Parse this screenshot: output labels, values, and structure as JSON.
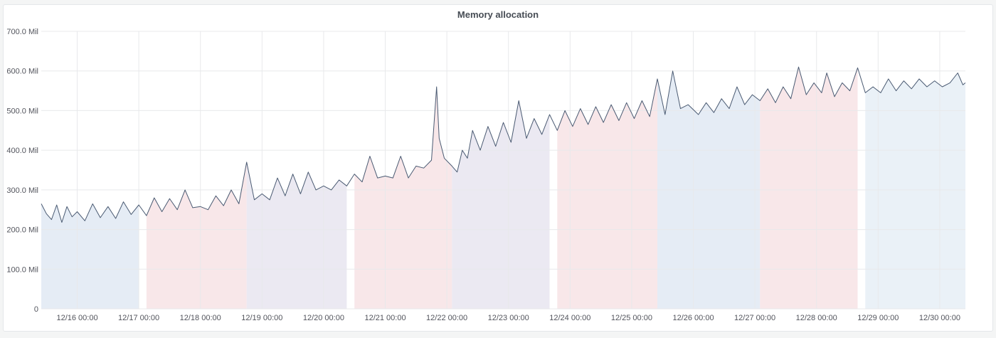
{
  "panel": {
    "title": "Memory allocation"
  },
  "chart_data": {
    "type": "line",
    "title": "Memory allocation",
    "xlabel": "",
    "ylabel": "",
    "y_unit": "Mil",
    "ylim": [
      0,
      700
    ],
    "y_ticks": [
      0,
      100,
      200,
      300,
      400,
      500,
      600,
      700
    ],
    "y_tick_labels": [
      "0",
      "100.0 Mil",
      "200.0 Mil",
      "300.0 Mil",
      "400.0 Mil",
      "500.0 Mil",
      "600.0 Mil",
      "700.0 Mil"
    ],
    "x_range": [
      "12/15 10:00",
      "12/30 10:00"
    ],
    "x_ticks": [
      "12/16 00:00",
      "12/17 00:00",
      "12/18 00:00",
      "12/19 00:00",
      "12/20 00:00",
      "12/21 00:00",
      "12/22 00:00",
      "12/23 00:00",
      "12/24 00:00",
      "12/25 00:00",
      "12/26 00:00",
      "12/27 00:00",
      "12/28 00:00",
      "12/29 00:00",
      "12/30 00:00"
    ],
    "grid": true,
    "legend": "none",
    "colors": {
      "line": "#4a5a72",
      "fill_blue": "#e5ecf5",
      "fill_pink": "#f8e7e9",
      "fill_lavender": "#ebe9f2",
      "fill_lightblue": "#eaf1f7",
      "grid": "#e8e9eb"
    },
    "band_colors": [
      "fill_blue",
      "fill_pink",
      "fill_lavender",
      "fill_pink",
      "fill_lavender",
      "fill_pink",
      "fill_blue",
      "fill_pink",
      "fill_lightblue"
    ],
    "series": [
      {
        "points": [
          [
            "12/15 10:00",
            265
          ],
          [
            "12/15 12:00",
            240
          ],
          [
            "12/15 14:00",
            225
          ],
          [
            "12/15 16:00",
            262
          ],
          [
            "12/15 18:00",
            218
          ],
          [
            "12/15 20:00",
            258
          ],
          [
            "12/15 22:00",
            232
          ],
          [
            "12/16 00:00",
            245
          ],
          [
            "12/16 03:00",
            222
          ],
          [
            "12/16 06:00",
            265
          ],
          [
            "12/16 09:00",
            230
          ],
          [
            "12/16 12:00",
            258
          ],
          [
            "12/16 15:00",
            228
          ],
          [
            "12/16 18:00",
            270
          ],
          [
            "12/16 21:00",
            238
          ],
          [
            "12/17 00:00",
            262
          ],
          [
            "12/17 03:00",
            235
          ],
          [
            "12/17 06:00",
            280
          ],
          [
            "12/17 09:00",
            245
          ],
          [
            "12/17 12:00",
            278
          ],
          [
            "12/17 15:00",
            250
          ],
          [
            "12/17 18:00",
            300
          ],
          [
            "12/17 21:00",
            255
          ],
          [
            "12/18 00:00",
            258
          ],
          [
            "12/18 03:00",
            250
          ],
          [
            "12/18 06:00",
            285
          ],
          [
            "12/18 09:00",
            260
          ],
          [
            "12/18 12:00",
            300
          ],
          [
            "12/18 15:00",
            265
          ],
          [
            "12/18 18:00",
            370
          ],
          [
            "12/18 21:00",
            275
          ],
          [
            "12/19 00:00",
            290
          ],
          [
            "12/19 03:00",
            275
          ],
          [
            "12/19 06:00",
            330
          ],
          [
            "12/19 09:00",
            285
          ],
          [
            "12/19 12:00",
            340
          ],
          [
            "12/19 15:00",
            290
          ],
          [
            "12/19 18:00",
            345
          ],
          [
            "12/19 21:00",
            300
          ],
          [
            "12/20 00:00",
            310
          ],
          [
            "12/20 03:00",
            300
          ],
          [
            "12/20 06:00",
            325
          ],
          [
            "12/20 09:00",
            310
          ],
          [
            "12/20 12:00",
            340
          ],
          [
            "12/20 15:00",
            320
          ],
          [
            "12/20 18:00",
            385
          ],
          [
            "12/20 21:00",
            330
          ],
          [
            "12/21 00:00",
            335
          ],
          [
            "12/21 03:00",
            330
          ],
          [
            "12/21 06:00",
            385
          ],
          [
            "12/21 09:00",
            330
          ],
          [
            "12/21 12:00",
            360
          ],
          [
            "12/21 15:00",
            355
          ],
          [
            "12/21 18:00",
            375
          ],
          [
            "12/21 20:00",
            560
          ],
          [
            "12/21 21:00",
            430
          ],
          [
            "12/21 23:00",
            380
          ],
          [
            "12/22 02:00",
            360
          ],
          [
            "12/22 04:00",
            345
          ],
          [
            "12/22 06:00",
            400
          ],
          [
            "12/22 08:00",
            380
          ],
          [
            "12/22 10:00",
            450
          ],
          [
            "12/22 13:00",
            400
          ],
          [
            "12/22 16:00",
            460
          ],
          [
            "12/22 19:00",
            410
          ],
          [
            "12/22 22:00",
            470
          ],
          [
            "12/23 01:00",
            420
          ],
          [
            "12/23 04:00",
            525
          ],
          [
            "12/23 07:00",
            430
          ],
          [
            "12/23 10:00",
            480
          ],
          [
            "12/23 13:00",
            440
          ],
          [
            "12/23 16:00",
            490
          ],
          [
            "12/23 19:00",
            450
          ],
          [
            "12/23 22:00",
            500
          ],
          [
            "12/24 01:00",
            460
          ],
          [
            "12/24 04:00",
            505
          ],
          [
            "12/24 07:00",
            465
          ],
          [
            "12/24 10:00",
            510
          ],
          [
            "12/24 13:00",
            470
          ],
          [
            "12/24 16:00",
            515
          ],
          [
            "12/24 19:00",
            475
          ],
          [
            "12/24 22:00",
            520
          ],
          [
            "12/25 01:00",
            480
          ],
          [
            "12/25 04:00",
            525
          ],
          [
            "12/25 07:00",
            485
          ],
          [
            "12/25 10:00",
            580
          ],
          [
            "12/25 13:00",
            490
          ],
          [
            "12/25 16:00",
            600
          ],
          [
            "12/25 19:00",
            505
          ],
          [
            "12/25 22:00",
            515
          ],
          [
            "12/26 02:00",
            490
          ],
          [
            "12/26 05:00",
            520
          ],
          [
            "12/26 08:00",
            495
          ],
          [
            "12/26 11:00",
            530
          ],
          [
            "12/26 14:00",
            505
          ],
          [
            "12/26 17:00",
            560
          ],
          [
            "12/26 20:00",
            515
          ],
          [
            "12/26 23:00",
            540
          ],
          [
            "12/27 02:00",
            525
          ],
          [
            "12/27 05:00",
            555
          ],
          [
            "12/27 08:00",
            520
          ],
          [
            "12/27 11:00",
            560
          ],
          [
            "12/27 14:00",
            530
          ],
          [
            "12/27 17:00",
            610
          ],
          [
            "12/27 20:00",
            540
          ],
          [
            "12/27 23:00",
            570
          ],
          [
            "12/28 02:00",
            545
          ],
          [
            "12/28 04:00",
            595
          ],
          [
            "12/28 07:00",
            535
          ],
          [
            "12/28 10:00",
            570
          ],
          [
            "12/28 13:00",
            550
          ],
          [
            "12/28 16:00",
            608
          ],
          [
            "12/28 19:00",
            545
          ],
          [
            "12/28 22:00",
            560
          ],
          [
            "12/29 01:00",
            545
          ],
          [
            "12/29 04:00",
            580
          ],
          [
            "12/29 07:00",
            550
          ],
          [
            "12/29 10:00",
            575
          ],
          [
            "12/29 13:00",
            555
          ],
          [
            "12/29 16:00",
            580
          ],
          [
            "12/29 19:00",
            560
          ],
          [
            "12/29 22:00",
            575
          ],
          [
            "12/30 01:00",
            560
          ],
          [
            "12/30 04:00",
            570
          ],
          [
            "12/30 07:00",
            595
          ],
          [
            "12/30 09:00",
            565
          ],
          [
            "12/30 10:00",
            570
          ]
        ]
      }
    ]
  }
}
